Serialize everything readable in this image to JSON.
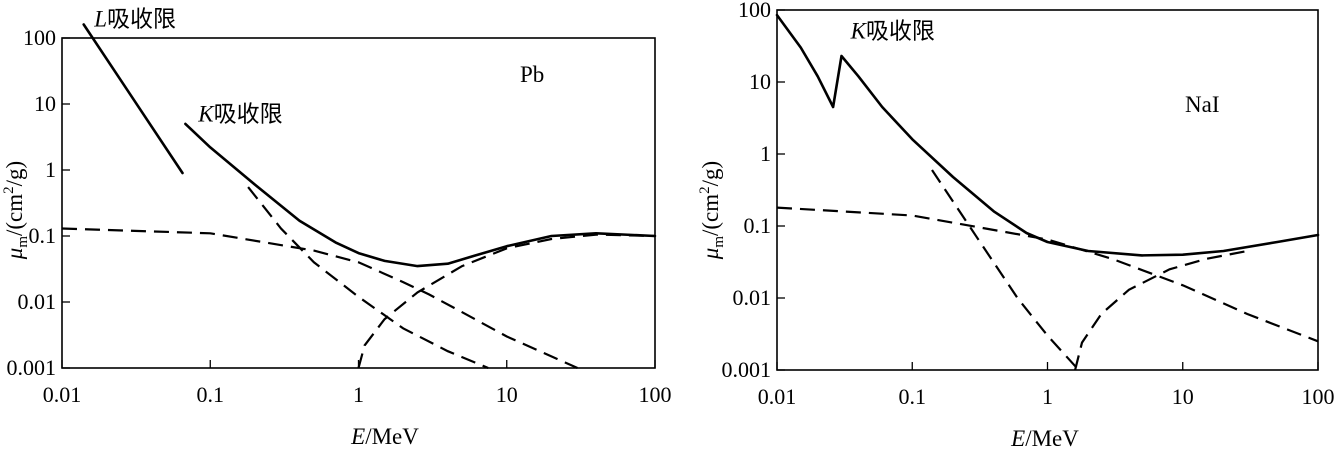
{
  "chart_data": [
    {
      "type": "line",
      "xscale": "log",
      "yscale": "log",
      "xlim": [
        0.01,
        100
      ],
      "ylim": [
        0.001,
        100
      ],
      "x_ticks": [
        "0.01",
        "0.1",
        "1",
        "10",
        "100"
      ],
      "y_ticks": [
        "0.001",
        "0.01",
        "0.1",
        "1",
        "10",
        "100"
      ],
      "xlabel_italic": "E",
      "xlabel_rest": "/MeV",
      "ylabel_mu": "μ",
      "ylabel_sub": "m",
      "ylabel_mid": "/(cm",
      "ylabel_sup": "2",
      "ylabel_end": "/g)",
      "material": "Pb",
      "annotations": [
        {
          "italic": "L",
          "text": "吸收限",
          "x": 0.0165,
          "y": 150
        },
        {
          "italic": "K",
          "text": "吸收限",
          "x": 0.083,
          "y": 5.4
        }
      ],
      "series": [
        {
          "style": "solid",
          "x": [
            0.014,
            0.065
          ],
          "y": [
            160,
            0.9
          ]
        },
        {
          "style": "solid",
          "x": [
            0.068,
            0.1,
            0.2,
            0.4,
            0.7,
            1.0,
            1.5,
            2.5,
            4,
            6,
            10,
            20,
            40,
            100
          ],
          "y": [
            5,
            2.2,
            0.6,
            0.17,
            0.08,
            0.055,
            0.042,
            0.035,
            0.038,
            0.05,
            0.07,
            0.1,
            0.11,
            0.1
          ]
        },
        {
          "style": "dashed",
          "x": [
            0.01,
            0.1,
            0.5,
            1,
            2,
            3,
            5,
            10,
            20,
            30
          ],
          "y": [
            0.13,
            0.11,
            0.06,
            0.04,
            0.02,
            0.013,
            0.007,
            0.003,
            0.0015,
            0.001
          ]
        },
        {
          "style": "dashed",
          "x": [
            0.18,
            0.3,
            0.5,
            1,
            2,
            4,
            7.5
          ],
          "y": [
            0.55,
            0.13,
            0.04,
            0.012,
            0.004,
            0.0018,
            0.001
          ]
        },
        {
          "style": "dashed",
          "x": [
            1.0,
            1.1,
            1.5,
            2.5,
            5,
            10,
            20,
            40,
            100
          ],
          "y": [
            0.001,
            0.0022,
            0.0055,
            0.014,
            0.035,
            0.065,
            0.09,
            0.105,
            0.1
          ]
        }
      ]
    },
    {
      "type": "line",
      "xscale": "log",
      "yscale": "log",
      "xlim": [
        0.01,
        100
      ],
      "ylim": [
        0.001,
        100
      ],
      "x_ticks": [
        "0.01",
        "0.1",
        "1",
        "10",
        "100"
      ],
      "y_ticks": [
        "0.001",
        "0.01",
        "0.1",
        "1",
        "10",
        "100"
      ],
      "xlabel_italic": "E",
      "xlabel_rest": "/MeV",
      "ylabel_mu": "μ",
      "ylabel_sub": "m",
      "ylabel_mid": "/(cm",
      "ylabel_sup": "2",
      "ylabel_end": "/g)",
      "material": "NaI",
      "annotations": [
        {
          "italic": "K",
          "text": "吸收限",
          "x": 0.035,
          "y": 40
        }
      ],
      "series": [
        {
          "style": "solid",
          "x": [
            0.01,
            0.015,
            0.02,
            0.026,
            0.03,
            0.04,
            0.06,
            0.1,
            0.2,
            0.4,
            0.7,
            1,
            2,
            5,
            10,
            20,
            50,
            100
          ],
          "y": [
            85,
            30,
            12,
            4.5,
            23,
            12,
            4.5,
            1.6,
            0.48,
            0.16,
            0.08,
            0.06,
            0.045,
            0.039,
            0.04,
            0.045,
            0.06,
            0.075
          ]
        },
        {
          "style": "dashed",
          "x": [
            0.01,
            0.1,
            1,
            3,
            10,
            30,
            100
          ],
          "y": [
            0.18,
            0.14,
            0.065,
            0.035,
            0.015,
            0.006,
            0.0025
          ]
        },
        {
          "style": "dashed",
          "x": [
            0.14,
            0.3,
            0.6,
            1,
            1.7
          ],
          "y": [
            0.6,
            0.07,
            0.01,
            0.003,
            0.001
          ]
        },
        {
          "style": "dashed",
          "x": [
            1.6,
            1.8,
            2.5,
            4,
            8,
            15,
            30
          ],
          "y": [
            0.001,
            0.0024,
            0.006,
            0.013,
            0.025,
            0.035,
            0.045
          ]
        }
      ]
    }
  ]
}
